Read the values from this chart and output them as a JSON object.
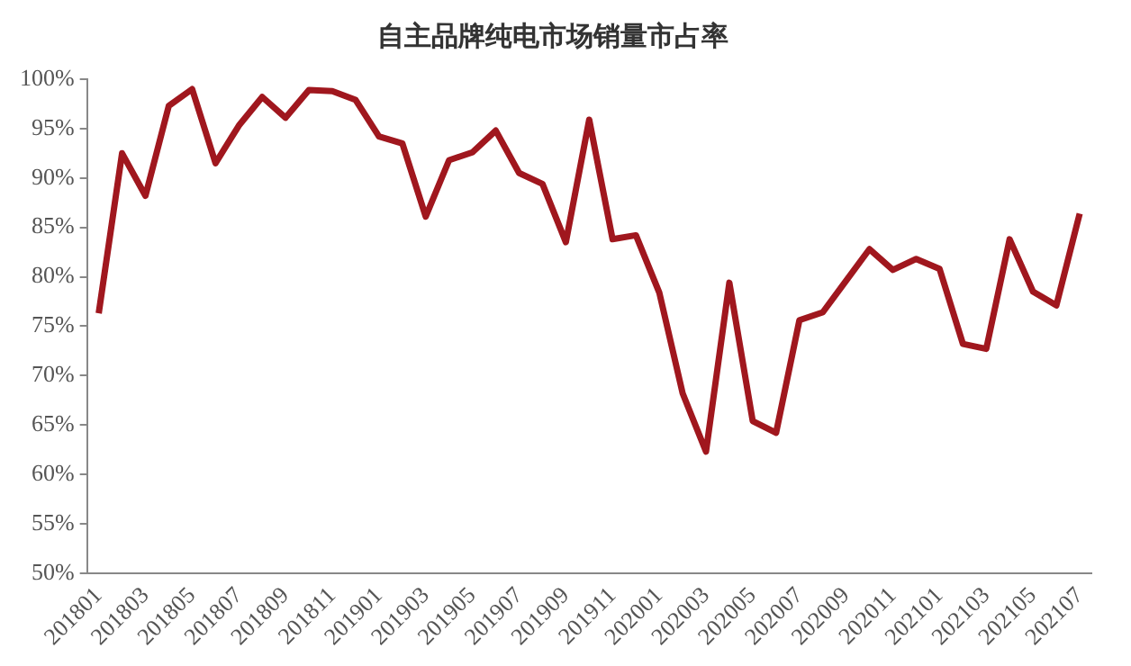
{
  "chart_data": {
    "type": "line",
    "title": "自主品牌纯电市场销量市占率",
    "categories": [
      "201801",
      null,
      "201803",
      null,
      "201805",
      null,
      "201807",
      null,
      "201809",
      null,
      "201811",
      null,
      "201901",
      null,
      "201903",
      null,
      "201905",
      null,
      "201907",
      null,
      "201909",
      null,
      "201911",
      null,
      "202001",
      null,
      "202003",
      null,
      "202005",
      null,
      "202007",
      null,
      "202009",
      null,
      "202011",
      null,
      "202101",
      null,
      "202103",
      null,
      "202105",
      null,
      "202107"
    ],
    "series": [
      {
        "color": "#a0171e",
        "values": [
          76.3,
          92.5,
          88.2,
          97.3,
          99.0,
          91.5,
          95.3,
          98.2,
          96.1,
          98.9,
          98.8,
          97.9,
          94.2,
          93.5,
          86.1,
          91.8,
          92.6,
          94.8,
          90.5,
          89.4,
          83.5,
          95.9,
          83.8,
          84.2,
          78.4,
          68.2,
          62.3,
          79.4,
          65.4,
          64.2,
          75.6,
          76.4,
          79.6,
          82.8,
          80.7,
          81.8,
          80.8,
          73.2,
          72.7,
          83.8,
          78.5,
          77.1,
          86.4
        ]
      }
    ],
    "ylim": [
      50,
      100
    ],
    "yticks": [
      {
        "value": 50,
        "label": "50%"
      },
      {
        "value": 55,
        "label": "55%"
      },
      {
        "value": 60,
        "label": "60%"
      },
      {
        "value": 65,
        "label": "65%"
      },
      {
        "value": 70,
        "label": "70%"
      },
      {
        "value": 75,
        "label": "75%"
      },
      {
        "value": 80,
        "label": "80%"
      },
      {
        "value": 85,
        "label": "85%"
      },
      {
        "value": 90,
        "label": "90%"
      },
      {
        "value": 95,
        "label": "95%"
      },
      {
        "value": 100,
        "label": "100%"
      }
    ],
    "grid": false,
    "legend": false,
    "marker": "none",
    "line_style": "solid"
  }
}
